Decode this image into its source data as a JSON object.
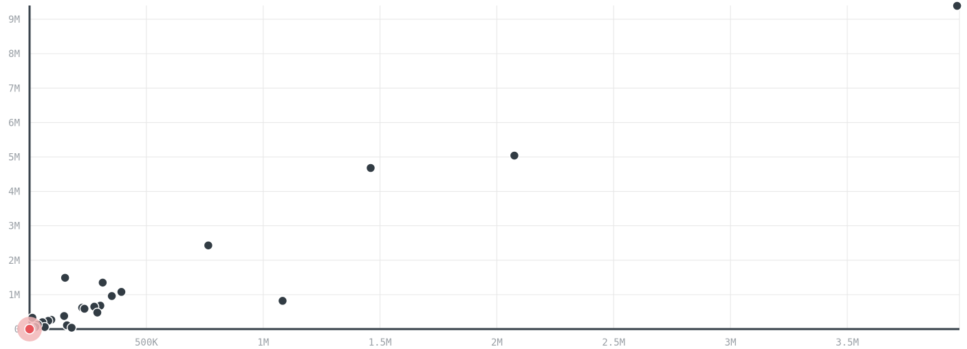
{
  "colors": {
    "point": "#323c44",
    "highlight": "#e8545a",
    "highlight_halo": "#f2b6b7",
    "grid": "#e6e6e6",
    "axis": "#37414a",
    "tick_text": "#9aa0a6"
  },
  "chart_data": {
    "type": "scatter",
    "title": "",
    "xlabel": "",
    "ylabel": "",
    "xlim": [
      0,
      3980000
    ],
    "ylim": [
      0,
      9400000
    ],
    "grid": true,
    "x_ticks": [
      {
        "value": 500000,
        "label": "500K"
      },
      {
        "value": 1000000,
        "label": "1M"
      },
      {
        "value": 1500000,
        "label": "1.5M"
      },
      {
        "value": 2000000,
        "label": "2M"
      },
      {
        "value": 2500000,
        "label": "2.5M"
      },
      {
        "value": 3000000,
        "label": "3M"
      },
      {
        "value": 3500000,
        "label": "3.5M"
      }
    ],
    "y_ticks": [
      {
        "value": 0,
        "label": "0"
      },
      {
        "value": 1000000,
        "label": "1M"
      },
      {
        "value": 2000000,
        "label": "2M"
      },
      {
        "value": 3000000,
        "label": "3M"
      },
      {
        "value": 4000000,
        "label": "4M"
      },
      {
        "value": 5000000,
        "label": "5M"
      },
      {
        "value": 6000000,
        "label": "6M"
      },
      {
        "value": 7000000,
        "label": "7M"
      },
      {
        "value": 8000000,
        "label": "8M"
      },
      {
        "value": 9000000,
        "label": "9M"
      }
    ],
    "points": [
      {
        "x": 3970000,
        "y": 9390000
      },
      {
        "x": 2075000,
        "y": 5040000
      },
      {
        "x": 1460000,
        "y": 4680000
      },
      {
        "x": 765000,
        "y": 2430000
      },
      {
        "x": 1083000,
        "y": 820000
      },
      {
        "x": 152000,
        "y": 1490000
      },
      {
        "x": 313000,
        "y": 1350000
      },
      {
        "x": 393000,
        "y": 1080000
      },
      {
        "x": 352000,
        "y": 960000
      },
      {
        "x": 303000,
        "y": 680000
      },
      {
        "x": 277000,
        "y": 650000
      },
      {
        "x": 225000,
        "y": 620000
      },
      {
        "x": 235000,
        "y": 590000
      },
      {
        "x": 290000,
        "y": 480000
      },
      {
        "x": 148000,
        "y": 380000
      },
      {
        "x": 93000,
        "y": 270000
      },
      {
        "x": 80000,
        "y": 240000
      },
      {
        "x": 55000,
        "y": 200000
      },
      {
        "x": 12000,
        "y": 330000
      },
      {
        "x": 160000,
        "y": 110000
      },
      {
        "x": 180000,
        "y": 40000
      },
      {
        "x": 65000,
        "y": 60000
      },
      {
        "x": 35000,
        "y": 130000
      },
      {
        "x": 25000,
        "y": 60000
      },
      {
        "x": 8000,
        "y": 20000
      }
    ],
    "highlighted_points": [
      {
        "x": 0,
        "y": 0
      }
    ]
  }
}
